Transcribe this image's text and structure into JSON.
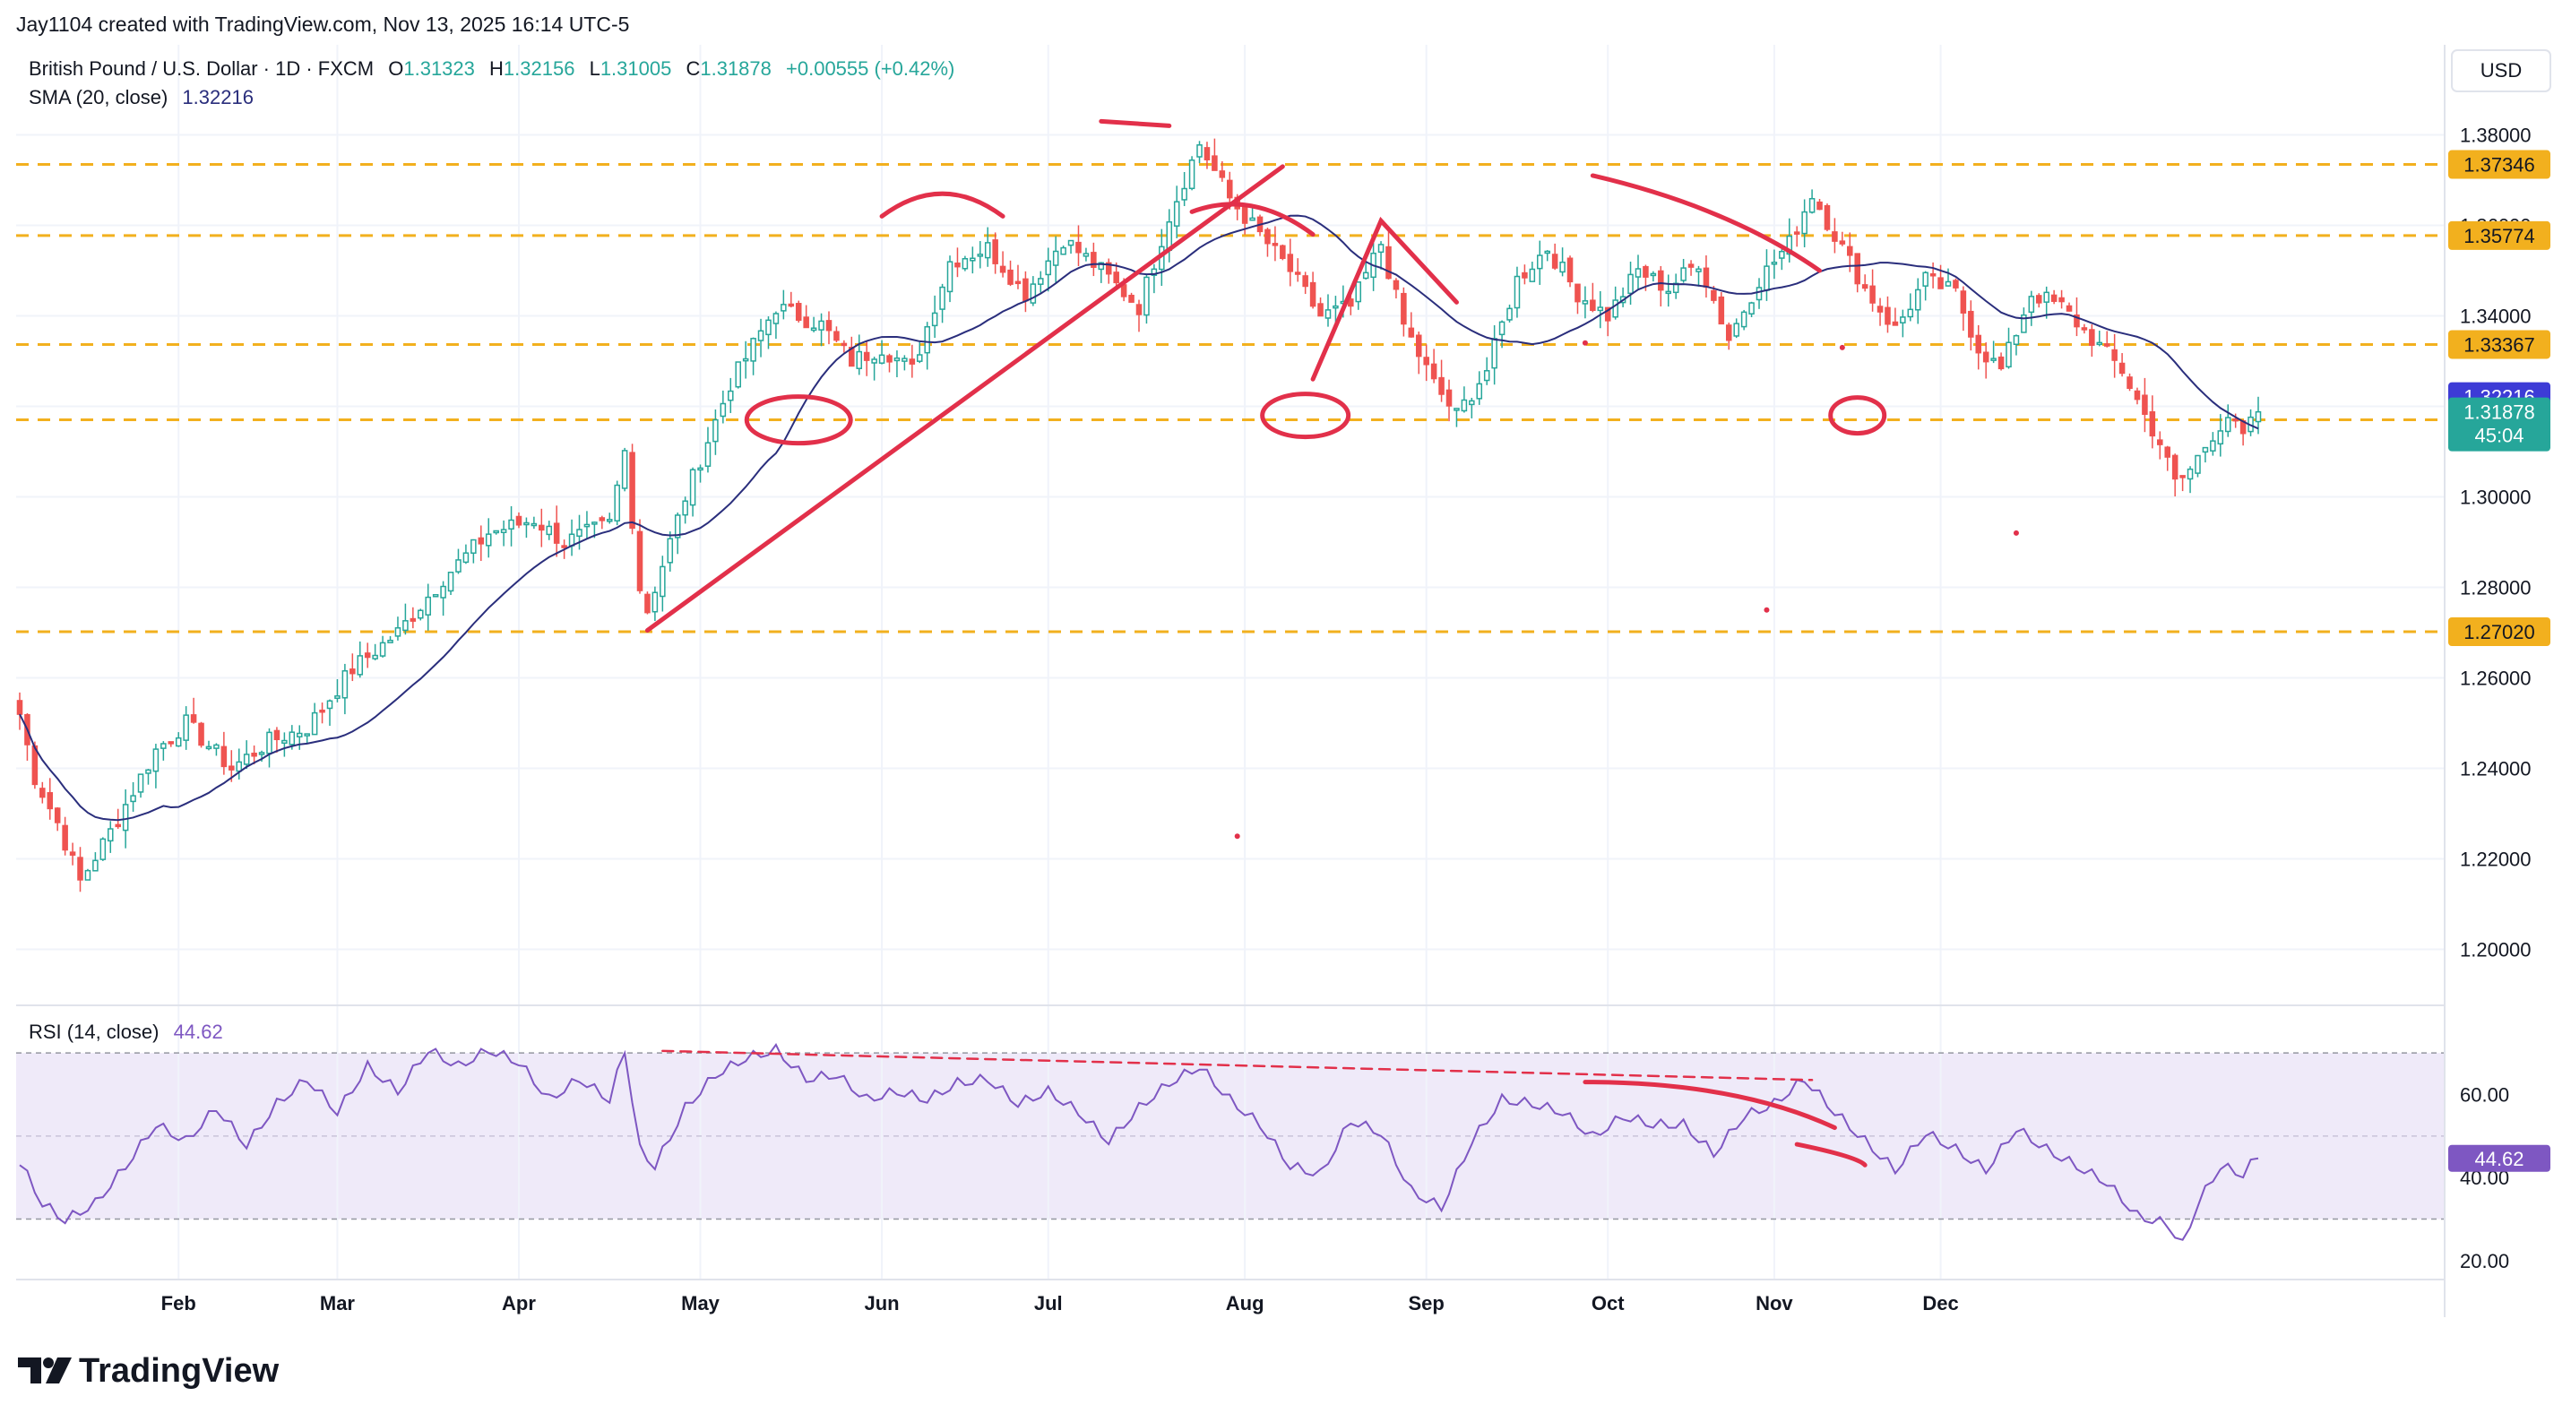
{
  "header": {
    "created_by": "Jay1104 created with TradingView.com, Nov 13, 2025 16:14 UTC-5"
  },
  "legend": {
    "symbol": "British Pound / U.S. Dollar · 1D · FXCM",
    "o_label": "O",
    "o_value": "1.31323",
    "h_label": "H",
    "h_value": "1.32156",
    "l_label": "L",
    "l_value": "1.31005",
    "c_label": "C",
    "c_value": "1.31878",
    "change": "+0.00555 (+0.42%)",
    "sma_label": "SMA (20, close)",
    "sma_value": "1.32216",
    "rsi_label": "RSI (14, close)",
    "rsi_value": "44.62"
  },
  "currency": "USD",
  "logo_text": "TradingView",
  "colors": {
    "up": "#26a69a",
    "down": "#ef5350",
    "sma": "#2a2e7c",
    "rsi": "#7e57c2",
    "level": "#f2b01e",
    "annotation": "#e2304a",
    "price_tag": "#26a69a",
    "sma_tag": "#3d3bd6"
  },
  "chart_data": {
    "type": "candlestick",
    "price_axis": {
      "ylim": [
        1.19,
        1.39
      ],
      "ticks": [
        "1.38000",
        "1.36000",
        "1.34000",
        "1.32000",
        "1.30000",
        "1.28000",
        "1.26000",
        "1.24000",
        "1.22000",
        "1.20000"
      ]
    },
    "rsi_axis": {
      "ylim": [
        15,
        75
      ],
      "ticks": [
        "60.00",
        "40.00",
        "20.00"
      ],
      "bands": [
        30,
        70
      ]
    },
    "time_axis": {
      "labels": [
        "Feb",
        "Mar",
        "Apr",
        "May",
        "Jun",
        "Jul",
        "Aug",
        "Sep",
        "Oct",
        "Nov",
        "Dec"
      ]
    },
    "horizontal_levels": [
      {
        "value": 1.37346,
        "label": "1.37346"
      },
      {
        "value": 1.35774,
        "label": "1.35774"
      },
      {
        "value": 1.33367,
        "label": "1.33367"
      },
      {
        "value": 1.31704,
        "label": "1.31704"
      },
      {
        "value": 1.2702,
        "label": "1.27020"
      }
    ],
    "price_tags": [
      {
        "value": 1.32216,
        "label": "1.32216",
        "kind": "sma"
      },
      {
        "value": 1.31878,
        "label": "1.31878",
        "sub": "45:04",
        "kind": "price"
      }
    ],
    "close_anchors": [
      {
        "i": 0,
        "v": 1.252
      },
      {
        "i": 2,
        "v": 1.238
      },
      {
        "i": 5,
        "v": 1.228
      },
      {
        "i": 8,
        "v": 1.215
      },
      {
        "i": 12,
        "v": 1.226
      },
      {
        "i": 18,
        "v": 1.244
      },
      {
        "i": 22,
        "v": 1.25
      },
      {
        "i": 28,
        "v": 1.24
      },
      {
        "i": 33,
        "v": 1.246
      },
      {
        "i": 38,
        "v": 1.249
      },
      {
        "i": 44,
        "v": 1.262
      },
      {
        "i": 50,
        "v": 1.27
      },
      {
        "i": 56,
        "v": 1.282
      },
      {
        "i": 62,
        "v": 1.292
      },
      {
        "i": 68,
        "v": 1.295
      },
      {
        "i": 72,
        "v": 1.29
      },
      {
        "i": 78,
        "v": 1.294
      },
      {
        "i": 80,
        "v": 1.31
      },
      {
        "i": 82,
        "v": 1.28
      },
      {
        "i": 83,
        "v": 1.275
      },
      {
        "i": 88,
        "v": 1.3
      },
      {
        "i": 94,
        "v": 1.325
      },
      {
        "i": 100,
        "v": 1.342
      },
      {
        "i": 106,
        "v": 1.338
      },
      {
        "i": 110,
        "v": 1.33
      },
      {
        "i": 114,
        "v": 1.333
      },
      {
        "i": 118,
        "v": 1.328
      },
      {
        "i": 123,
        "v": 1.352
      },
      {
        "i": 128,
        "v": 1.355
      },
      {
        "i": 133,
        "v": 1.345
      },
      {
        "i": 138,
        "v": 1.357
      },
      {
        "i": 143,
        "v": 1.35
      },
      {
        "i": 148,
        "v": 1.342
      },
      {
        "i": 152,
        "v": 1.362
      },
      {
        "i": 156,
        "v": 1.378
      },
      {
        "i": 160,
        "v": 1.366
      },
      {
        "i": 164,
        "v": 1.358
      },
      {
        "i": 168,
        "v": 1.35
      },
      {
        "i": 172,
        "v": 1.34
      },
      {
        "i": 176,
        "v": 1.342
      },
      {
        "i": 180,
        "v": 1.356
      },
      {
        "i": 183,
        "v": 1.338
      },
      {
        "i": 187,
        "v": 1.325
      },
      {
        "i": 190,
        "v": 1.318
      },
      {
        "i": 194,
        "v": 1.328
      },
      {
        "i": 198,
        "v": 1.348
      },
      {
        "i": 202,
        "v": 1.355
      },
      {
        "i": 206,
        "v": 1.345
      },
      {
        "i": 210,
        "v": 1.34
      },
      {
        "i": 214,
        "v": 1.35
      },
      {
        "i": 218,
        "v": 1.346
      },
      {
        "i": 222,
        "v": 1.352
      },
      {
        "i": 226,
        "v": 1.335
      },
      {
        "i": 230,
        "v": 1.348
      },
      {
        "i": 234,
        "v": 1.356
      },
      {
        "i": 237,
        "v": 1.367
      },
      {
        "i": 240,
        "v": 1.358
      },
      {
        "i": 244,
        "v": 1.346
      },
      {
        "i": 248,
        "v": 1.337
      },
      {
        "i": 252,
        "v": 1.348
      },
      {
        "i": 256,
        "v": 1.345
      },
      {
        "i": 259,
        "v": 1.333
      },
      {
        "i": 262,
        "v": 1.328
      },
      {
        "i": 266,
        "v": 1.345
      },
      {
        "i": 270,
        "v": 1.342
      },
      {
        "i": 274,
        "v": 1.335
      },
      {
        "i": 278,
        "v": 1.328
      },
      {
        "i": 281,
        "v": 1.318
      },
      {
        "i": 283,
        "v": 1.312
      },
      {
        "i": 285,
        "v": 1.303
      },
      {
        "i": 287,
        "v": 1.306
      },
      {
        "i": 290,
        "v": 1.314
      },
      {
        "i": 292,
        "v": 1.318
      },
      {
        "i": 294,
        "v": 1.313
      },
      {
        "i": 296,
        "v": 1.31878
      }
    ],
    "rsi_anchors": [
      {
        "i": 0,
        "v": 43
      },
      {
        "i": 3,
        "v": 33
      },
      {
        "i": 6,
        "v": 29
      },
      {
        "i": 10,
        "v": 33
      },
      {
        "i": 14,
        "v": 42
      },
      {
        "i": 18,
        "v": 52
      },
      {
        "i": 22,
        "v": 48
      },
      {
        "i": 26,
        "v": 56
      },
      {
        "i": 30,
        "v": 47
      },
      {
        "i": 34,
        "v": 57
      },
      {
        "i": 38,
        "v": 63
      },
      {
        "i": 42,
        "v": 55
      },
      {
        "i": 46,
        "v": 66
      },
      {
        "i": 50,
        "v": 60
      },
      {
        "i": 54,
        "v": 70
      },
      {
        "i": 58,
        "v": 66
      },
      {
        "i": 62,
        "v": 70
      },
      {
        "i": 66,
        "v": 67
      },
      {
        "i": 70,
        "v": 58
      },
      {
        "i": 74,
        "v": 63
      },
      {
        "i": 78,
        "v": 58
      },
      {
        "i": 80,
        "v": 70
      },
      {
        "i": 82,
        "v": 46
      },
      {
        "i": 84,
        "v": 42
      },
      {
        "i": 88,
        "v": 56
      },
      {
        "i": 92,
        "v": 64
      },
      {
        "i": 96,
        "v": 68
      },
      {
        "i": 100,
        "v": 70
      },
      {
        "i": 104,
        "v": 63
      },
      {
        "i": 108,
        "v": 64
      },
      {
        "i": 112,
        "v": 58
      },
      {
        "i": 116,
        "v": 60
      },
      {
        "i": 120,
        "v": 58
      },
      {
        "i": 124,
        "v": 62
      },
      {
        "i": 128,
        "v": 63
      },
      {
        "i": 132,
        "v": 57
      },
      {
        "i": 136,
        "v": 60
      },
      {
        "i": 140,
        "v": 55
      },
      {
        "i": 144,
        "v": 48
      },
      {
        "i": 148,
        "v": 56
      },
      {
        "i": 152,
        "v": 62
      },
      {
        "i": 156,
        "v": 66
      },
      {
        "i": 160,
        "v": 58
      },
      {
        "i": 164,
        "v": 52
      },
      {
        "i": 168,
        "v": 42
      },
      {
        "i": 172,
        "v": 40
      },
      {
        "i": 176,
        "v": 53
      },
      {
        "i": 180,
        "v": 50
      },
      {
        "i": 184,
        "v": 36
      },
      {
        "i": 188,
        "v": 32
      },
      {
        "i": 192,
        "v": 48
      },
      {
        "i": 196,
        "v": 58
      },
      {
        "i": 200,
        "v": 57
      },
      {
        "i": 204,
        "v": 55
      },
      {
        "i": 208,
        "v": 49
      },
      {
        "i": 212,
        "v": 54
      },
      {
        "i": 216,
        "v": 52
      },
      {
        "i": 220,
        "v": 52
      },
      {
        "i": 224,
        "v": 45
      },
      {
        "i": 228,
        "v": 54
      },
      {
        "i": 232,
        "v": 57
      },
      {
        "i": 236,
        "v": 63
      },
      {
        "i": 240,
        "v": 55
      },
      {
        "i": 244,
        "v": 48
      },
      {
        "i": 248,
        "v": 41
      },
      {
        "i": 252,
        "v": 50
      },
      {
        "i": 256,
        "v": 46
      },
      {
        "i": 260,
        "v": 41
      },
      {
        "i": 264,
        "v": 51
      },
      {
        "i": 268,
        "v": 46
      },
      {
        "i": 272,
        "v": 42
      },
      {
        "i": 276,
        "v": 38
      },
      {
        "i": 280,
        "v": 30
      },
      {
        "i": 284,
        "v": 28
      },
      {
        "i": 286,
        "v": 23
      },
      {
        "i": 288,
        "v": 33
      },
      {
        "i": 291,
        "v": 42
      },
      {
        "i": 294,
        "v": 40
      },
      {
        "i": 296,
        "v": 44.62
      }
    ]
  }
}
